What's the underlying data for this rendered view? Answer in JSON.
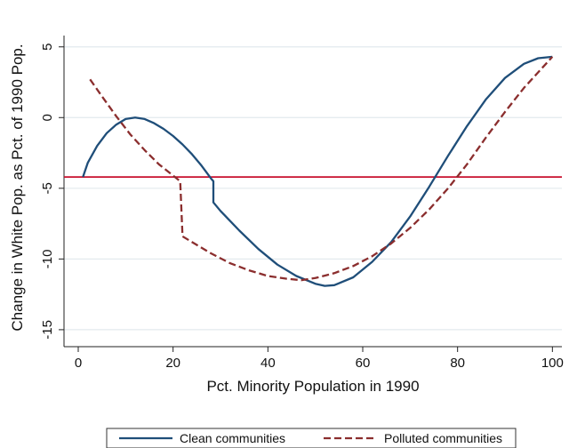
{
  "chart_data": {
    "type": "line",
    "title": "",
    "xlabel": "Pct. Minority Population in 1990",
    "ylabel": "Change in White Pop. as Pct. of 1990 Pop.",
    "xlim": [
      -3,
      102
    ],
    "ylim": [
      -16.2,
      5.8
    ],
    "xticks": [
      0,
      20,
      40,
      60,
      80,
      100
    ],
    "yticks": [
      5,
      0,
      -5,
      -10,
      -15
    ],
    "grid": "horizontal",
    "legend_position": "bottom",
    "reference_line": {
      "y": -4.2,
      "color": "#c8102e"
    },
    "series": [
      {
        "name": "Clean communities",
        "style": "solid",
        "color": "#1f4e79",
        "points": [
          [
            1,
            -4.2
          ],
          [
            2,
            -3.2
          ],
          [
            4,
            -2.0
          ],
          [
            6,
            -1.1
          ],
          [
            8,
            -0.5
          ],
          [
            10,
            -0.1
          ],
          [
            12,
            0.0
          ],
          [
            14,
            -0.1
          ],
          [
            16,
            -0.4
          ],
          [
            18,
            -0.8
          ],
          [
            20,
            -1.3
          ],
          [
            22,
            -1.9
          ],
          [
            24,
            -2.6
          ],
          [
            26,
            -3.4
          ],
          [
            28,
            -4.3
          ],
          [
            28.5,
            -4.5
          ],
          [
            28.5,
            -6.0
          ],
          [
            30,
            -6.6
          ],
          [
            34,
            -8.0
          ],
          [
            38,
            -9.3
          ],
          [
            42,
            -10.4
          ],
          [
            46,
            -11.2
          ],
          [
            50,
            -11.75
          ],
          [
            52,
            -11.9
          ],
          [
            54,
            -11.85
          ],
          [
            58,
            -11.3
          ],
          [
            62,
            -10.2
          ],
          [
            66,
            -8.8
          ],
          [
            70,
            -7.0
          ],
          [
            74,
            -4.9
          ],
          [
            78,
            -2.7
          ],
          [
            82,
            -0.6
          ],
          [
            86,
            1.3
          ],
          [
            90,
            2.8
          ],
          [
            94,
            3.8
          ],
          [
            97,
            4.2
          ],
          [
            100,
            4.3
          ]
        ]
      },
      {
        "name": "Polluted communities",
        "style": "dashed",
        "color": "#8b2e2e",
        "points": [
          [
            2.5,
            2.7
          ],
          [
            5,
            1.5
          ],
          [
            8,
            0.1
          ],
          [
            11,
            -1.2
          ],
          [
            14,
            -2.3
          ],
          [
            17,
            -3.3
          ],
          [
            20,
            -4.1
          ],
          [
            21.5,
            -4.5
          ],
          [
            22,
            -8.4
          ],
          [
            25,
            -9.0
          ],
          [
            28,
            -9.6
          ],
          [
            32,
            -10.3
          ],
          [
            36,
            -10.8
          ],
          [
            40,
            -11.2
          ],
          [
            44,
            -11.4
          ],
          [
            47,
            -11.5
          ],
          [
            50,
            -11.35
          ],
          [
            54,
            -11.0
          ],
          [
            58,
            -10.5
          ],
          [
            62,
            -9.8
          ],
          [
            66,
            -8.9
          ],
          [
            70,
            -7.8
          ],
          [
            74,
            -6.5
          ],
          [
            78,
            -5.0
          ],
          [
            82,
            -3.3
          ],
          [
            86,
            -1.4
          ],
          [
            90,
            0.4
          ],
          [
            94,
            2.1
          ],
          [
            97,
            3.2
          ],
          [
            100,
            4.3
          ]
        ]
      }
    ]
  }
}
